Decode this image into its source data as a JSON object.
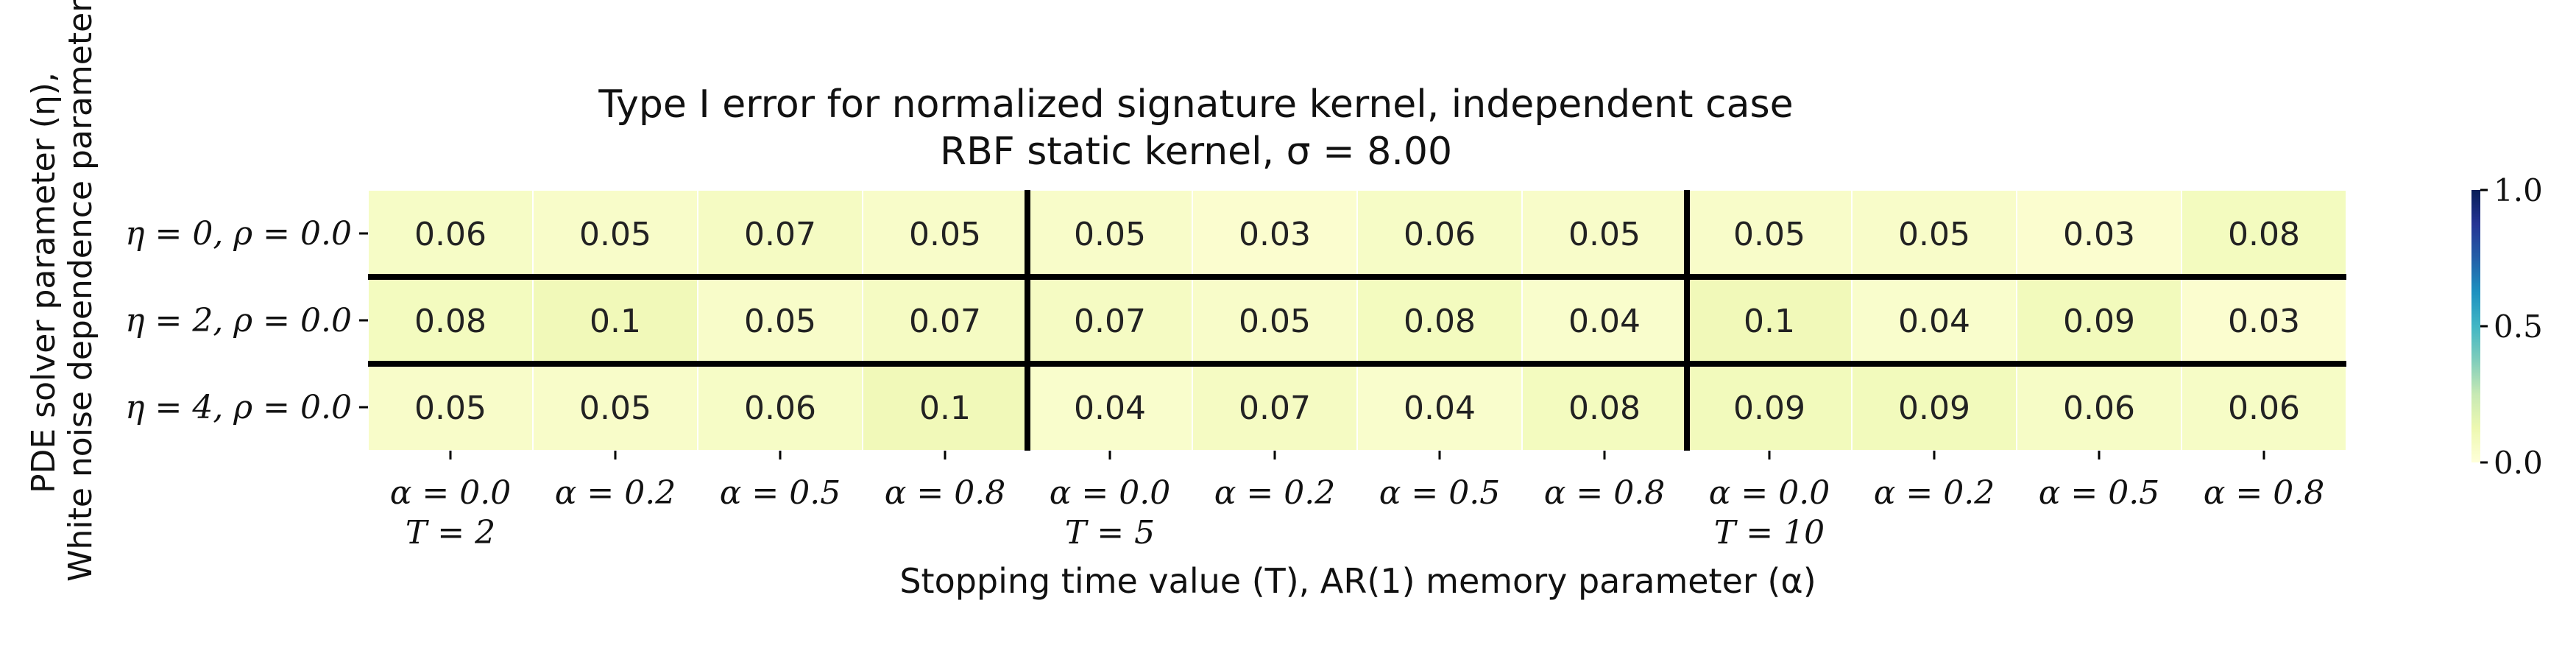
{
  "chart_data": {
    "type": "heatmap",
    "title": "Type I error for normalized signature kernel, independent case",
    "subtitle": "RBF static kernel, σ = 8.00",
    "xlabel": "Stopping time value (T), AR(1) memory parameter (α)",
    "ylabel_line1": "PDE solver parameter (η),",
    "ylabel_line2": "White noise dependence parameter (ρ)",
    "row_labels": [
      "η = 0, ρ = 0.0",
      "η = 2, ρ = 0.0",
      "η = 4, ρ = 0.0"
    ],
    "col_alpha_labels": [
      "α = 0.0",
      "α = 0.2",
      "α = 0.5",
      "α = 0.8",
      "α = 0.0",
      "α = 0.2",
      "α = 0.5",
      "α = 0.8",
      "α = 0.0",
      "α = 0.2",
      "α = 0.5",
      "α = 0.8"
    ],
    "col_T_labels": [
      "T = 2",
      "",
      "",
      "",
      "T = 5",
      "",
      "",
      "",
      "T = 10",
      "",
      "",
      ""
    ],
    "values": [
      [
        0.06,
        0.05,
        0.07,
        0.05,
        0.05,
        0.03,
        0.06,
        0.05,
        0.05,
        0.05,
        0.03,
        0.08
      ],
      [
        0.08,
        0.1,
        0.05,
        0.07,
        0.07,
        0.05,
        0.08,
        0.04,
        0.1,
        0.04,
        0.09,
        0.03
      ],
      [
        0.05,
        0.05,
        0.06,
        0.1,
        0.04,
        0.07,
        0.04,
        0.08,
        0.09,
        0.09,
        0.06,
        0.06
      ]
    ],
    "colorbar": {
      "vmin": 0.0,
      "vmax": 1.0,
      "ticks": [
        "0.0",
        "0.5",
        "1.0"
      ],
      "colormap": "YlGnBu"
    },
    "group_separators_after_col": [
      4,
      8
    ],
    "row_separators": true
  }
}
